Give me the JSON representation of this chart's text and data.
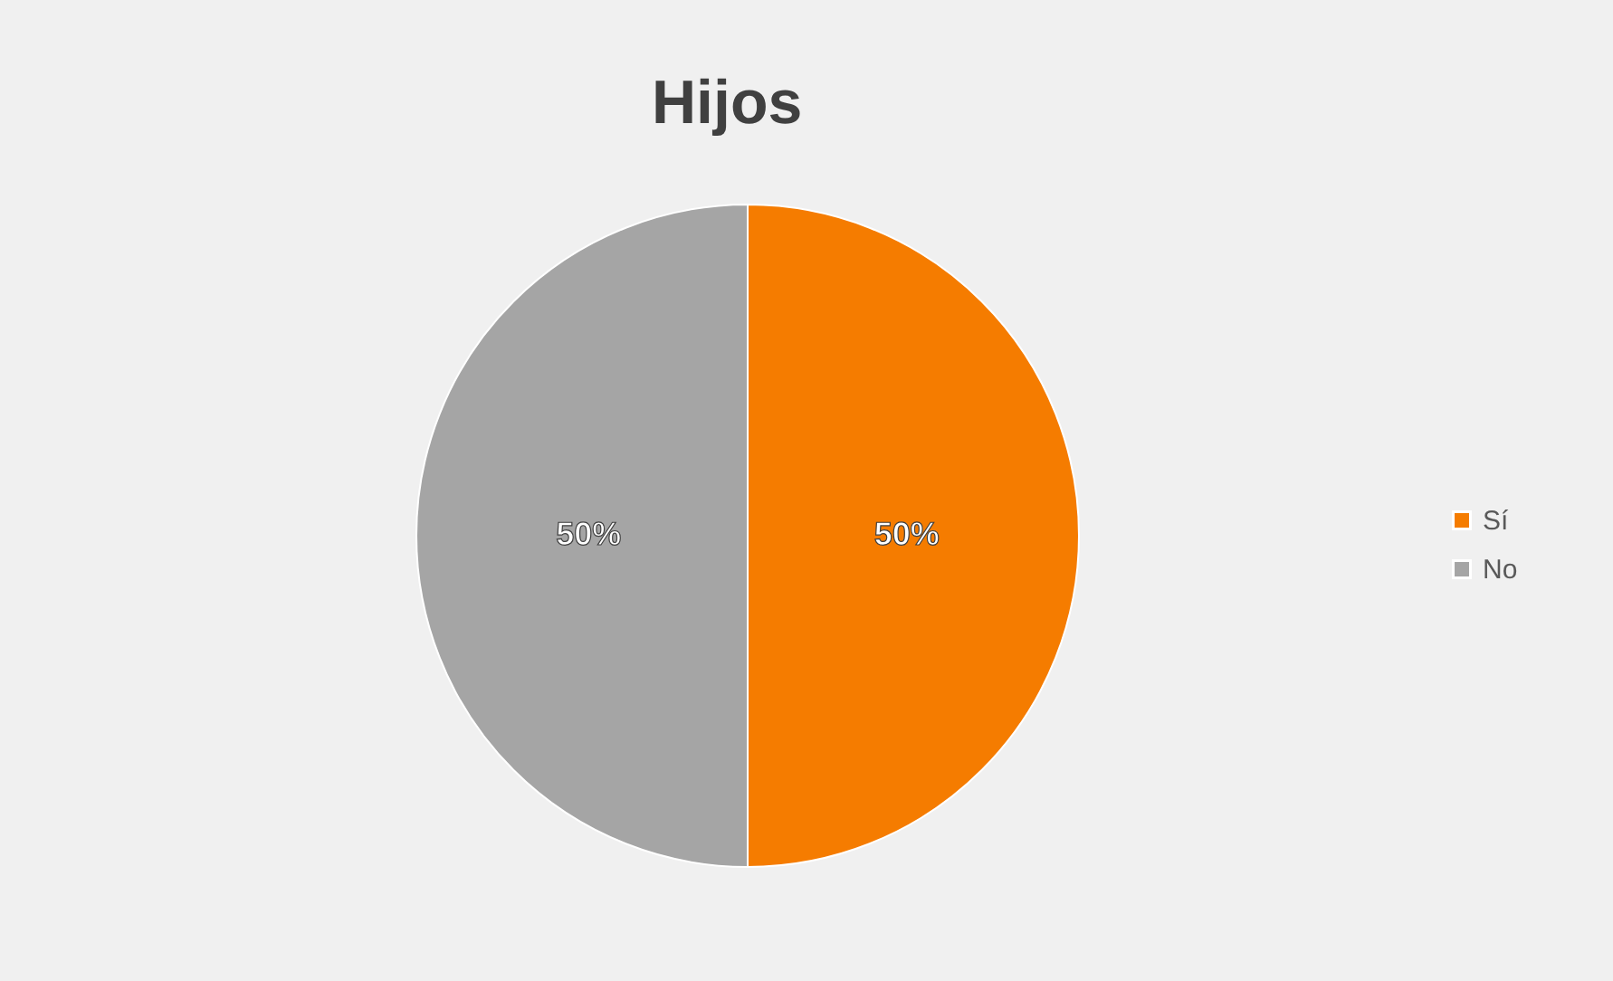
{
  "chart_data": {
    "type": "pie",
    "title": "Hijos",
    "categories": [
      "Sí",
      "No"
    ],
    "values": [
      50,
      50
    ],
    "colors": [
      "#f57c00",
      "#a5a5a5"
    ],
    "value_labels": [
      "50%",
      "50%"
    ],
    "legend": "right"
  }
}
